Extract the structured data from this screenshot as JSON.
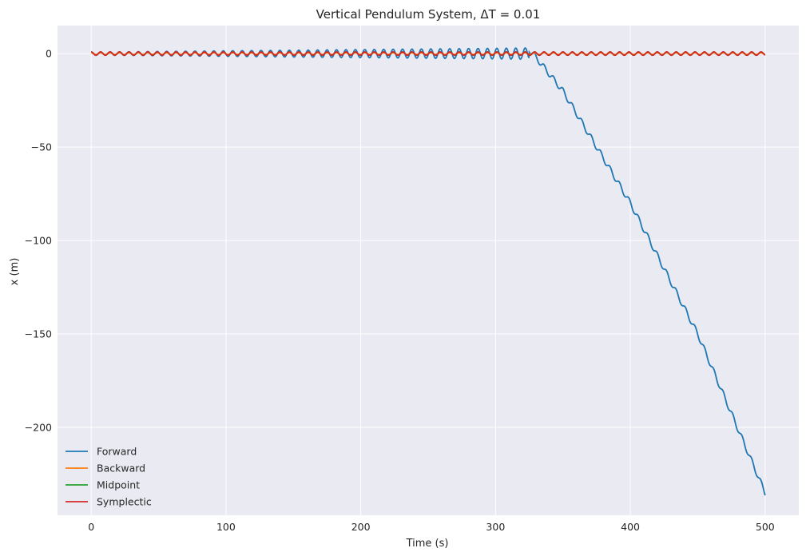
{
  "chart_data": {
    "type": "line",
    "title": "Vertical Pendulum System, ΔT = 0.01",
    "xlabel": "Time (s)",
    "ylabel": "x (m)",
    "xlim": [
      -25,
      525
    ],
    "ylim": [
      -247,
      15
    ],
    "xticks": [
      0,
      100,
      200,
      300,
      400,
      500
    ],
    "xtick_labels": [
      "0",
      "100",
      "200",
      "300",
      "400",
      "500"
    ],
    "yticks": [
      0,
      -50,
      -100,
      -150,
      -200
    ],
    "ytick_labels": [
      "0",
      "−50",
      "−100",
      "−150",
      "−200"
    ],
    "grid": true,
    "background": "#eaeaf2",
    "legend_position": "lower-left",
    "series": [
      {
        "name": "Forward",
        "color": "#1f77b4",
        "description_points": {
          "x": [
            0,
            50,
            100,
            150,
            200,
            250,
            300,
            320,
            325,
            330,
            350,
            400,
            450,
            500
          ],
          "y": [
            0,
            0,
            0,
            0,
            0,
            0,
            0,
            0,
            2,
            -2,
            -20,
            -80,
            -150,
            -235
          ]
        },
        "oscillation_amplitude_growth": [
          0.8,
          3.0
        ],
        "period": 7.0
      },
      {
        "name": "Backward",
        "color": "#ff7f0e",
        "x": [
          0,
          500
        ],
        "y": [
          0,
          0
        ],
        "oscillation_amplitude": 0.4,
        "period": 7.0
      },
      {
        "name": "Midpoint",
        "color": "#2ca02c",
        "x": [
          0,
          500
        ],
        "y": [
          0,
          0
        ],
        "oscillation_amplitude": 0.9,
        "period": 7.0
      },
      {
        "name": "Symplectic",
        "color": "#d62728",
        "x": [
          0,
          500
        ],
        "y": [
          0,
          0
        ],
        "oscillation_amplitude": 0.9,
        "period": 7.0
      }
    ]
  }
}
